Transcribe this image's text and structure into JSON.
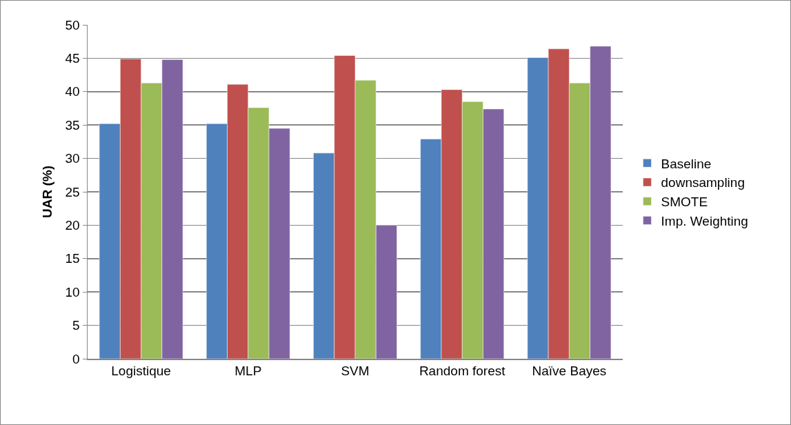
{
  "chart_data": {
    "type": "bar",
    "ylabel": "UAR (%)",
    "categories": [
      "Logistique",
      "MLP",
      "SVM",
      "Random forest",
      "Naïve Bayes"
    ],
    "series": [
      {
        "name": "Baseline",
        "color": "#4f81bd",
        "values": [
          35.2,
          35.2,
          30.8,
          32.9,
          45.1
        ]
      },
      {
        "name": "downsampling",
        "color": "#c0504d",
        "values": [
          44.9,
          41.1,
          45.4,
          40.3,
          46.4
        ]
      },
      {
        "name": "SMOTE",
        "color": "#9bbb59",
        "values": [
          41.3,
          37.6,
          41.7,
          38.5,
          41.3
        ]
      },
      {
        "name": "Imp. Weighting",
        "color": "#8064a2",
        "values": [
          44.8,
          34.5,
          20.0,
          37.4,
          46.8
        ]
      }
    ],
    "ylim": [
      0,
      50
    ],
    "yticks": [
      0,
      5,
      10,
      15,
      20,
      25,
      30,
      35,
      40,
      45,
      50
    ],
    "grid": "y",
    "legend": "right"
  }
}
